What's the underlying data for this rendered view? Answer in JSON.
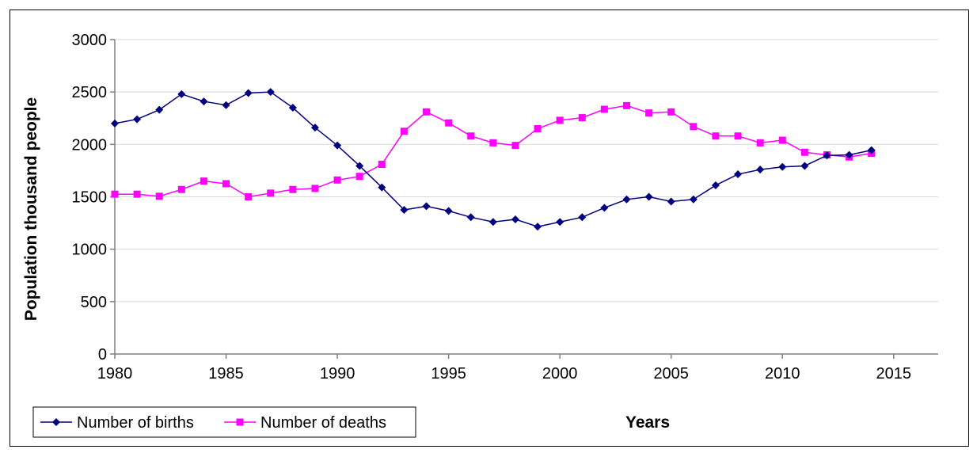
{
  "chart_data": {
    "type": "line",
    "xlabel": "Years",
    "ylabel": "Population thousand people",
    "xlim": [
      1980,
      2017
    ],
    "ylim": [
      0,
      3000
    ],
    "xticks": [
      "1980",
      "1985",
      "1990",
      "1995",
      "2000",
      "2005",
      "2010",
      "2015"
    ],
    "yticks": [
      "0",
      "500",
      "1000",
      "1500",
      "2000",
      "2500",
      "3000"
    ],
    "grid": "horizontal",
    "legend_position": "bottom-left",
    "x": [
      1980,
      1981,
      1982,
      1983,
      1984,
      1985,
      1986,
      1987,
      1988,
      1989,
      1990,
      1991,
      1992,
      1993,
      1994,
      1995,
      1996,
      1997,
      1998,
      1999,
      2000,
      2001,
      2002,
      2003,
      2004,
      2005,
      2006,
      2007,
      2008,
      2009,
      2010,
      2011,
      2012,
      2013,
      2014
    ],
    "series": [
      {
        "name": "Number of births",
        "color": "#000080",
        "marker": "diamond",
        "values": [
          2200,
          2240,
          2330,
          2480,
          2410,
          2375,
          2490,
          2500,
          2350,
          2160,
          1990,
          1795,
          1590,
          1375,
          1410,
          1365,
          1305,
          1260,
          1285,
          1215,
          1260,
          1305,
          1395,
          1475,
          1500,
          1455,
          1475,
          1610,
          1715,
          1760,
          1785,
          1795,
          1895,
          1900,
          1945
        ]
      },
      {
        "name": "Number of deaths",
        "color": "#FF00FF",
        "marker": "square",
        "values": [
          1525,
          1525,
          1505,
          1570,
          1650,
          1625,
          1500,
          1535,
          1570,
          1580,
          1660,
          1695,
          1810,
          2125,
          2310,
          2205,
          2080,
          2015,
          1990,
          2150,
          2230,
          2255,
          2335,
          2370,
          2300,
          2310,
          2170,
          2080,
          2080,
          2015,
          2040,
          1925,
          1900,
          1880,
          1915
        ]
      }
    ]
  }
}
